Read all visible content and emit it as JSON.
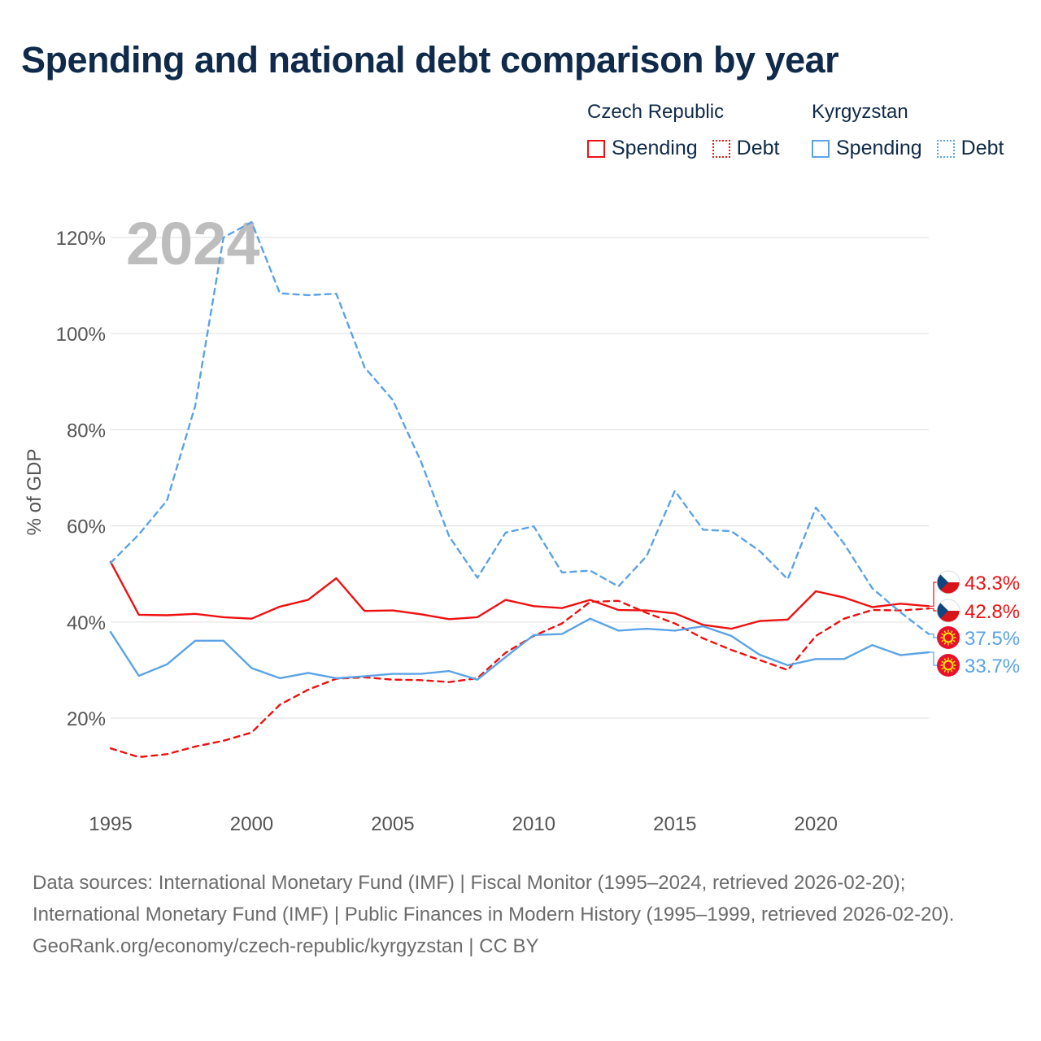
{
  "title": "Spending and national debt comparison by year",
  "legend": {
    "groups": [
      {
        "country": "Czech Republic",
        "color": "#ee1111",
        "items": [
          {
            "label": "Spending",
            "style": "solid"
          },
          {
            "label": "Debt",
            "style": "dotted"
          }
        ]
      },
      {
        "country": "Kyrgyzstan",
        "color": "#5ba3e6",
        "items": [
          {
            "label": "Spending",
            "style": "solid"
          },
          {
            "label": "Debt",
            "style": "dotted"
          }
        ]
      }
    ]
  },
  "year_watermark": "2024",
  "chart_data": {
    "type": "line",
    "ylabel": "% of GDP",
    "xlabel": "",
    "xlim": [
      1995,
      2024
    ],
    "ylim": [
      0,
      130
    ],
    "yticks": [
      20,
      40,
      60,
      80,
      100,
      120
    ],
    "ytick_labels": [
      "20%",
      "40%",
      "60%",
      "80%",
      "100%",
      "120%"
    ],
    "xticks": [
      1995,
      2000,
      2005,
      2010,
      2015,
      2020
    ],
    "xtick_labels": [
      "1995",
      "2000",
      "2005",
      "2010",
      "2015",
      "2020"
    ],
    "grid": true,
    "x": [
      1995,
      1996,
      1997,
      1998,
      1999,
      2000,
      2001,
      2002,
      2003,
      2004,
      2005,
      2006,
      2007,
      2008,
      2009,
      2010,
      2011,
      2012,
      2013,
      2014,
      2015,
      2016,
      2017,
      2018,
      2019,
      2020,
      2021,
      2022,
      2023,
      2024
    ],
    "series": [
      {
        "name": "Czech Republic Spending",
        "color": "#ee1111",
        "dash": "solid",
        "values": [
          52.5,
          41.5,
          41.4,
          41.7,
          41.0,
          40.7,
          43.2,
          44.6,
          49.1,
          42.3,
          42.4,
          41.6,
          40.6,
          41.0,
          44.6,
          43.3,
          42.9,
          44.6,
          42.5,
          42.4,
          41.8,
          39.4,
          38.6,
          40.2,
          40.5,
          46.4,
          45.1,
          43.1,
          43.8,
          43.3
        ]
      },
      {
        "name": "Czech Republic Debt",
        "color": "#ee1111",
        "dash": "dashed",
        "values": [
          13.7,
          11.9,
          12.5,
          14.1,
          15.3,
          17.0,
          22.8,
          25.9,
          28.2,
          28.5,
          28.0,
          27.9,
          27.5,
          28.3,
          33.6,
          37.1,
          39.7,
          44.2,
          44.4,
          41.9,
          39.7,
          36.6,
          34.2,
          32.1,
          30.0,
          37.1,
          40.7,
          42.5,
          42.4,
          42.8
        ]
      },
      {
        "name": "Kyrgyzstan Spending",
        "color": "#5ba3e6",
        "dash": "solid",
        "values": [
          37.9,
          28.8,
          31.2,
          36.1,
          36.1,
          30.4,
          28.3,
          29.4,
          28.3,
          28.7,
          29.2,
          29.2,
          29.8,
          28.0,
          32.7,
          37.3,
          37.5,
          40.7,
          38.2,
          38.6,
          38.2,
          39.1,
          37.1,
          33.2,
          31.0,
          32.3,
          32.3,
          35.2,
          33.1,
          33.7
        ]
      },
      {
        "name": "Kyrgyzstan Debt",
        "color": "#5ba3e6",
        "dash": "dashed",
        "values": [
          52.3,
          58.2,
          65.3,
          85.0,
          120.0,
          123.2,
          108.4,
          108.0,
          108.3,
          93.0,
          86.2,
          73.4,
          57.8,
          49.2,
          58.6,
          59.9,
          50.3,
          50.7,
          47.4,
          53.7,
          67.3,
          59.2,
          58.9,
          54.8,
          48.9,
          63.8,
          56.3,
          47.0,
          42.0,
          37.5
        ]
      }
    ],
    "end_labels": [
      {
        "text": "43.3%",
        "color": "#ee1111",
        "flag": "czech-republic",
        "value": 43.3
      },
      {
        "text": "42.8%",
        "color": "#ee1111",
        "flag": "czech-republic",
        "value": 42.8
      },
      {
        "text": "37.5%",
        "color": "#5ba3e6",
        "flag": "kyrgyzstan",
        "value": 37.5
      },
      {
        "text": "33.7%",
        "color": "#5ba3e6",
        "flag": "kyrgyzstan",
        "value": 33.7
      }
    ]
  },
  "footer": {
    "sources": "Data sources: International Monetary Fund (IMF) | Fiscal Monitor (1995–2024, retrieved 2026-02-20); International Monetary Fund (IMF) | Public Finances in Modern History (1995–1999, retrieved 2026-02-20).",
    "credit": "GeoRank.org/economy/czech-republic/kyrgyzstan | CC BY"
  }
}
